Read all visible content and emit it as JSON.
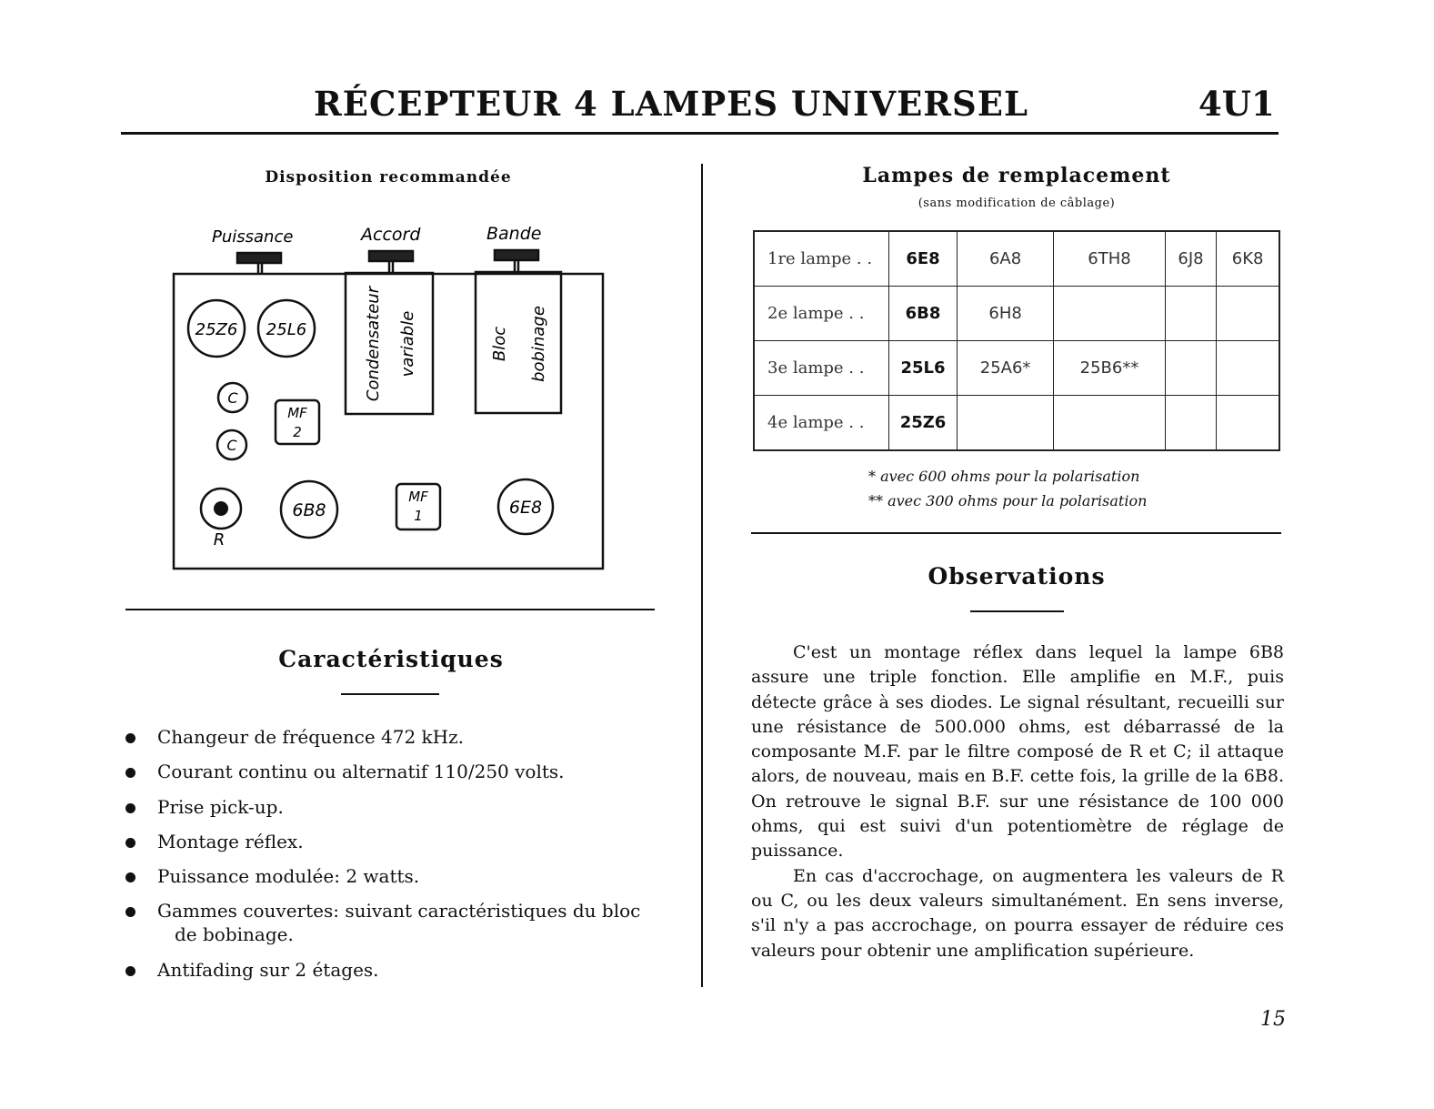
{
  "header": {
    "title": "RÉCEPTEUR 4 LAMPES UNIVERSEL",
    "code": "4U1"
  },
  "diagram": {
    "heading": "Disposition recommandée",
    "controls": [
      "Puissance",
      "Accord",
      "Bande"
    ],
    "tubes": [
      "25Z6",
      "25L6",
      "6B8",
      "6E8"
    ],
    "capacitors": [
      "C",
      "C"
    ],
    "resistor": "R",
    "mf2": [
      "MF",
      "2"
    ],
    "mf1": [
      "MF",
      "1"
    ],
    "condensateur": [
      "Condensateur",
      "variable"
    ],
    "bloc": [
      "Bloc",
      "bobinage"
    ]
  },
  "caracteristiques": {
    "heading": "Caractéristiques",
    "items": [
      "Changeur de fréquence 472 kHz.",
      "Courant continu ou alternatif 110/250 volts.",
      "Prise pick-up.",
      "Montage réflex.",
      "Puissance modulée: 2 watts.",
      "Gammes couvertes: suivant caractéristiques du bloc",
      "Antifading sur 2 étages."
    ],
    "item6_cont": "de bobinage."
  },
  "lampes": {
    "heading": "Lampes de remplacement",
    "subheading": "(sans modification de câblage)",
    "rows": [
      {
        "label": "1re lampe . .",
        "cells": [
          "6E8",
          "6A8",
          "6TH8",
          "6J8",
          "6K8"
        ]
      },
      {
        "label": "2e lampe . .",
        "cells": [
          "6B8",
          "6H8",
          "",
          "",
          ""
        ]
      },
      {
        "label": "3e lampe . .",
        "cells": [
          "25L6",
          "25A6*",
          "25B6**",
          "",
          ""
        ]
      },
      {
        "label": "4e lampe . .",
        "cells": [
          "25Z6",
          "",
          "",
          "",
          ""
        ]
      }
    ],
    "footnotes": [
      "* avec 600 ohms pour la polarisation",
      "** avec 300 ohms pour la polarisation"
    ]
  },
  "observations": {
    "heading": "Observations",
    "paragraphs": [
      "C'est un montage réflex dans lequel la lampe 6B8 assure une triple fonction. Elle amplifie en M.F., puis détecte grâce à ses diodes. Le signal résultant, recueilli sur une résistance de 500.000 ohms, est débarrassé de la composante M.F. par le filtre composé de R et C; il attaque alors, de nouveau, mais en B.F. cette fois, la grille de la 6B8. On retrouve le signal B.F. sur une résistance de 100 000 ohms, qui est suivi d'un potentiomètre de réglage de puissance.",
      "En cas d'accrochage, on augmentera les valeurs de R ou C, ou les deux valeurs simultanément. En sens inverse, s'il n'y a pas accrochage, on pourra essayer de réduire ces valeurs pour obtenir une amplification supérieure."
    ]
  },
  "page_number": "15"
}
